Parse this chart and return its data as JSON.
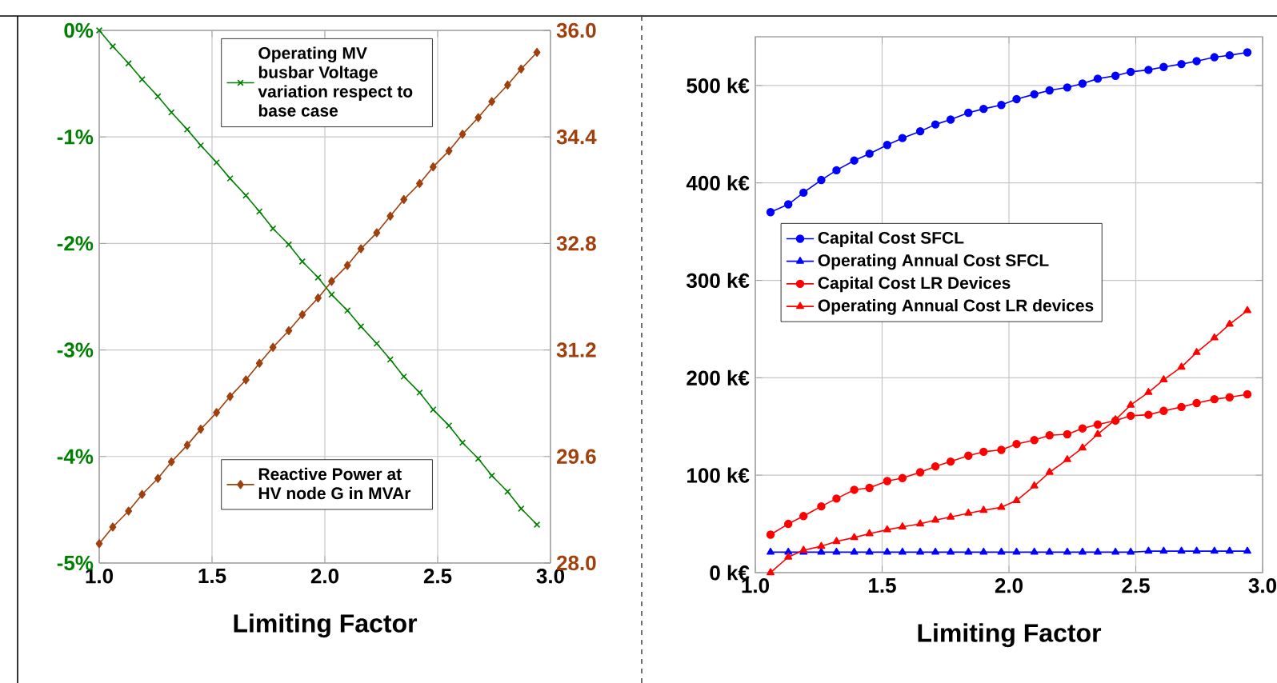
{
  "chart_data": [
    {
      "type": "line",
      "x": [
        1.0,
        1.06,
        1.13,
        1.19,
        1.26,
        1.32,
        1.39,
        1.45,
        1.52,
        1.58,
        1.65,
        1.71,
        1.77,
        1.84,
        1.9,
        1.97,
        2.03,
        2.1,
        2.16,
        2.23,
        2.29,
        2.35,
        2.42,
        2.48,
        2.55,
        2.61,
        2.68,
        2.74,
        2.81,
        2.87,
        2.94
      ],
      "xlabel": "Limiting Factor",
      "xlim": [
        1,
        3
      ],
      "xticks": [
        {
          "value": 1,
          "label": "1.0"
        },
        {
          "value": 1.5,
          "label": "1.5"
        },
        {
          "value": 2,
          "label": "2.0"
        },
        {
          "value": 2.5,
          "label": "2.5"
        },
        {
          "value": 3,
          "label": "3.0"
        }
      ],
      "ylim": [
        -5,
        0
      ],
      "yticks": [
        {
          "value": -5,
          "label": "-5%"
        },
        {
          "value": -4,
          "label": "-4%"
        },
        {
          "value": -3,
          "label": "-3%"
        },
        {
          "value": -2,
          "label": "-2%"
        },
        {
          "value": -1,
          "label": "-1%"
        },
        {
          "value": 0,
          "label": "0%"
        }
      ],
      "y2lim": [
        28,
        36
      ],
      "y2ticks": [
        {
          "value": 28,
          "label": "28.0"
        },
        {
          "value": 29.6,
          "label": "29.6"
        },
        {
          "value": 31.2,
          "label": "31.2"
        },
        {
          "value": 32.8,
          "label": "32.8"
        },
        {
          "value": 34.4,
          "label": "34.4"
        },
        {
          "value": 36,
          "label": "36.0"
        }
      ],
      "grid": true,
      "legend": "top",
      "series": [
        {
          "name": "Operating MV busbar Voltage variation respect to base case",
          "color": "#008000",
          "marker": "cross",
          "values": [
            0,
            -0.15,
            -0.31,
            -0.46,
            -0.62,
            -0.77,
            -0.93,
            -1.08,
            -1.24,
            -1.39,
            -1.55,
            -1.7,
            -1.86,
            -2.01,
            -2.17,
            -2.32,
            -2.48,
            -2.63,
            -2.78,
            -2.94,
            -3.09,
            -3.25,
            -3.4,
            -3.56,
            -3.71,
            -3.87,
            -4.02,
            -4.18,
            -4.33,
            -4.49,
            -4.64
          ]
        },
        {
          "name": "Reactive Power at HV node G in MVAr",
          "color": "#a0400c",
          "marker": "diamond",
          "axis": "y2",
          "values": [
            28.29,
            28.54,
            28.78,
            29.03,
            29.27,
            29.52,
            29.77,
            30.01,
            30.26,
            30.5,
            30.75,
            31.0,
            31.24,
            31.49,
            31.73,
            31.98,
            32.23,
            32.47,
            32.72,
            32.96,
            33.21,
            33.46,
            33.7,
            33.95,
            34.19,
            34.44,
            34.69,
            34.93,
            35.18,
            35.42,
            35.67
          ]
        }
      ]
    },
    {
      "type": "line",
      "x": [
        1.06,
        1.13,
        1.19,
        1.26,
        1.32,
        1.39,
        1.45,
        1.52,
        1.58,
        1.65,
        1.71,
        1.77,
        1.84,
        1.9,
        1.97,
        2.03,
        2.1,
        2.16,
        2.23,
        2.29,
        2.35,
        2.42,
        2.48,
        2.55,
        2.61,
        2.68,
        2.74,
        2.81,
        2.87,
        2.94
      ],
      "xlabel": "Limiting Factor",
      "xlim": [
        1,
        3
      ],
      "xticks": [
        {
          "value": 1,
          "label": "1.0"
        },
        {
          "value": 1.5,
          "label": "1.5"
        },
        {
          "value": 2,
          "label": "2.0"
        },
        {
          "value": 2.5,
          "label": "2.5"
        },
        {
          "value": 3,
          "label": "3.0"
        }
      ],
      "ylim": [
        0,
        550
      ],
      "yticks": [
        {
          "value": 0,
          "label": "0 k€"
        },
        {
          "value": 100,
          "label": "100 k€"
        },
        {
          "value": 200,
          "label": "200 k€"
        },
        {
          "value": 300,
          "label": "300 k€"
        },
        {
          "value": 400,
          "label": "400 k€"
        },
        {
          "value": 500,
          "label": "500 k€"
        }
      ],
      "grid": true,
      "legend": "left",
      "series": [
        {
          "name": "Capital Cost SFCL",
          "color": "#0000ff",
          "marker": "circle",
          "values": [
            370,
            378,
            390,
            403,
            413,
            423,
            430,
            439,
            446,
            453,
            460,
            465,
            472,
            476,
            480,
            486,
            491,
            495,
            498,
            502,
            507,
            510,
            514,
            516,
            519,
            522,
            525,
            529,
            531,
            534
          ]
        },
        {
          "name": "Operating Annual Cost SFCL",
          "color": "#0000ff",
          "marker": "triangle",
          "values": [
            21,
            21,
            21,
            21,
            21,
            21,
            21,
            21,
            21,
            21,
            21,
            21,
            21,
            21,
            21,
            21,
            21,
            21,
            21,
            21,
            21,
            21,
            21,
            22,
            22,
            22,
            22,
            22,
            22,
            22
          ]
        },
        {
          "name": "Capital Cost LR Devices",
          "color": "#ff0000",
          "marker": "circle",
          "values": [
            39,
            50,
            58,
            68,
            76,
            85,
            87,
            94,
            97,
            103,
            109,
            114,
            120,
            124,
            126,
            132,
            136,
            141,
            142,
            148,
            152,
            156,
            161,
            162,
            166,
            170,
            174,
            178,
            180,
            183
          ]
        },
        {
          "name": "Operating Annual Cost LR devices",
          "color": "#ff0000",
          "marker": "triangle",
          "values": [
            0,
            16,
            23,
            27,
            32,
            36,
            40,
            44,
            47,
            50,
            54,
            57,
            61,
            64,
            67,
            74,
            89,
            103,
            116,
            128,
            142,
            157,
            172,
            185,
            198,
            211,
            226,
            241,
            255,
            269
          ]
        }
      ]
    }
  ]
}
